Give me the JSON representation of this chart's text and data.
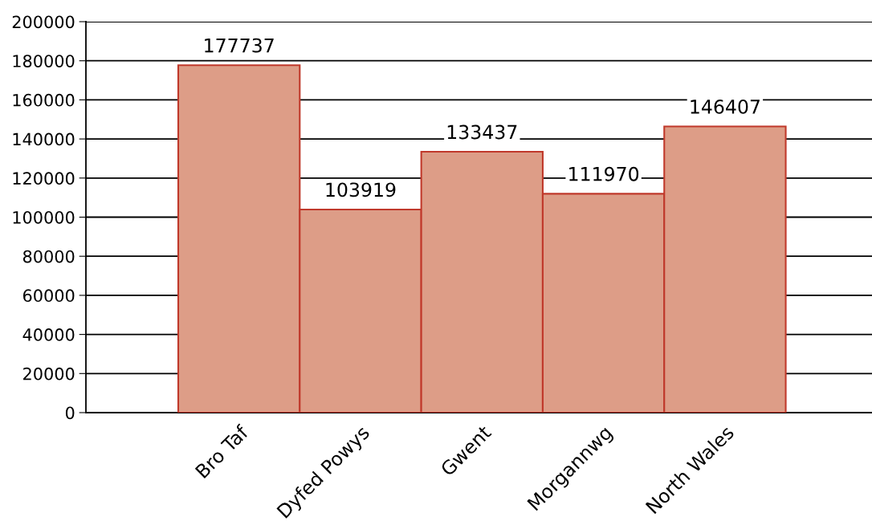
{
  "chart_data": {
    "type": "bar",
    "categories": [
      "Bro Taf",
      "Dyfed Powys",
      "Gwent",
      "Morgannwg",
      "North Wales"
    ],
    "values": [
      177737,
      103919,
      133437,
      111970,
      146407
    ],
    "color": "#dd9d87",
    "ylim": [
      0,
      200000
    ],
    "yticks": [
      0,
      20000,
      40000,
      60000,
      80000,
      100000,
      120000,
      140000,
      160000,
      180000,
      200000
    ],
    "grid": "y",
    "data_labels": true
  }
}
